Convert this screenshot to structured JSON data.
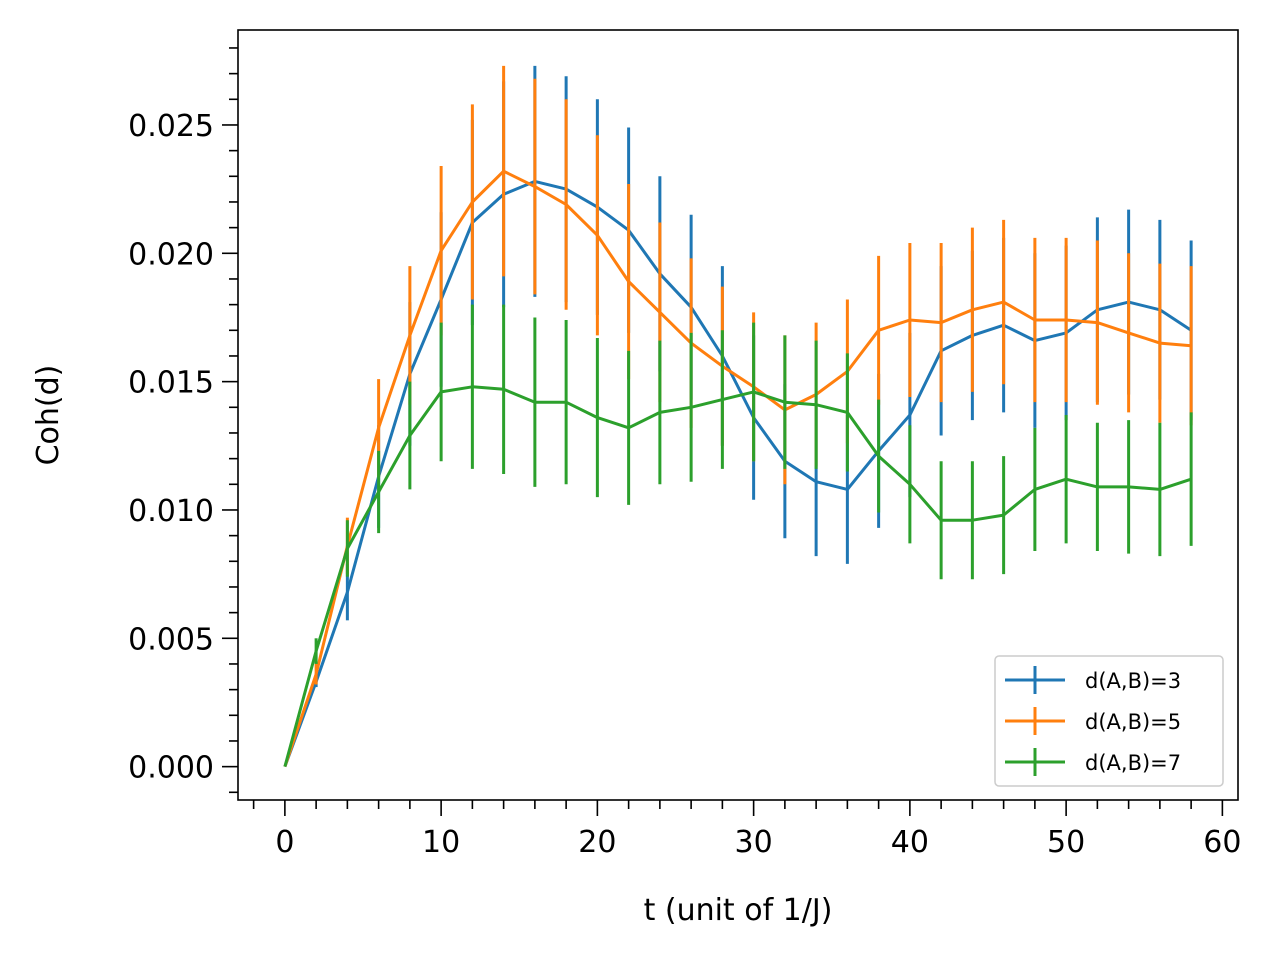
{
  "chart_data": {
    "type": "line",
    "title": "",
    "xlabel": "t (unit of 1/J)",
    "ylabel": "Coh(d)",
    "xlim": [
      -3,
      61
    ],
    "ylim": [
      -0.0013,
      0.0287
    ],
    "xticks": [
      0,
      10,
      20,
      30,
      40,
      50,
      60
    ],
    "xtick_labels": [
      "0",
      "10",
      "20",
      "30",
      "40",
      "50",
      "60"
    ],
    "yticks": [
      0.0,
      0.005,
      0.01,
      0.015,
      0.02,
      0.025
    ],
    "ytick_labels": [
      "0.000",
      "0.005",
      "0.010",
      "0.015",
      "0.020",
      "0.025"
    ],
    "legend_position": "lower-right",
    "x": [
      0,
      2,
      4,
      6,
      8,
      10,
      12,
      14,
      16,
      18,
      20,
      22,
      24,
      26,
      28,
      30,
      32,
      34,
      36,
      38,
      40,
      42,
      44,
      46,
      48,
      50,
      52,
      54,
      56,
      58
    ],
    "series": [
      {
        "name": "d(A,B)=3",
        "color": "#1f77b4",
        "values": [
          0.0,
          0.0033,
          0.0068,
          0.0113,
          0.0153,
          0.0182,
          0.0212,
          0.0223,
          0.0228,
          0.0225,
          0.0218,
          0.0209,
          0.0192,
          0.0179,
          0.016,
          0.0136,
          0.0119,
          0.0111,
          0.0108,
          0.0123,
          0.0137,
          0.0162,
          0.0168,
          0.0172,
          0.0166,
          0.0169,
          0.0178,
          0.0181,
          0.0178,
          0.017
        ],
        "errors": [
          0.0,
          0.0002,
          0.0011,
          0.002,
          0.0028,
          0.0034,
          0.004,
          0.0044,
          0.0045,
          0.0044,
          0.0042,
          0.004,
          0.0038,
          0.0036,
          0.0035,
          0.0032,
          0.003,
          0.0029,
          0.0029,
          0.003,
          0.0032,
          0.0033,
          0.0033,
          0.0034,
          0.0034,
          0.0034,
          0.0036,
          0.0036,
          0.0035,
          0.0035
        ]
      },
      {
        "name": "d(A,B)=5",
        "color": "#ff7f0e",
        "values": [
          0.0,
          0.0036,
          0.0086,
          0.0132,
          0.0168,
          0.0201,
          0.022,
          0.0232,
          0.0226,
          0.0219,
          0.0207,
          0.0189,
          0.0177,
          0.0165,
          0.0156,
          0.0148,
          0.0139,
          0.0145,
          0.0154,
          0.017,
          0.0174,
          0.0173,
          0.0178,
          0.0181,
          0.0174,
          0.0174,
          0.0173,
          0.0169,
          0.0165,
          0.0164
        ],
        "errors": [
          0.0,
          0.0004,
          0.0011,
          0.0019,
          0.0027,
          0.0033,
          0.0038,
          0.0041,
          0.0042,
          0.0041,
          0.0039,
          0.0038,
          0.0035,
          0.0033,
          0.0031,
          0.0029,
          0.0029,
          0.0028,
          0.0028,
          0.0029,
          0.003,
          0.0031,
          0.0032,
          0.0032,
          0.0032,
          0.0032,
          0.0032,
          0.0031,
          0.0031,
          0.0031
        ]
      },
      {
        "name": "d(A,B)=7",
        "color": "#2ca02c",
        "values": [
          0.0,
          0.0045,
          0.0085,
          0.0107,
          0.0129,
          0.0146,
          0.0148,
          0.0147,
          0.0142,
          0.0142,
          0.0136,
          0.0132,
          0.0138,
          0.014,
          0.0143,
          0.0146,
          0.0142,
          0.0141,
          0.0138,
          0.0121,
          0.011,
          0.0096,
          0.0096,
          0.0098,
          0.0108,
          0.0112,
          0.0109,
          0.0109,
          0.0108,
          0.0112
        ],
        "errors": [
          0.0,
          0.0005,
          0.0011,
          0.0016,
          0.0021,
          0.0027,
          0.0032,
          0.0033,
          0.0033,
          0.0032,
          0.0031,
          0.003,
          0.0028,
          0.0029,
          0.0027,
          0.0027,
          0.0026,
          0.0025,
          0.0023,
          0.0022,
          0.0023,
          0.0023,
          0.0023,
          0.0023,
          0.0024,
          0.0025,
          0.0025,
          0.0026,
          0.0026,
          0.0026
        ]
      }
    ]
  }
}
